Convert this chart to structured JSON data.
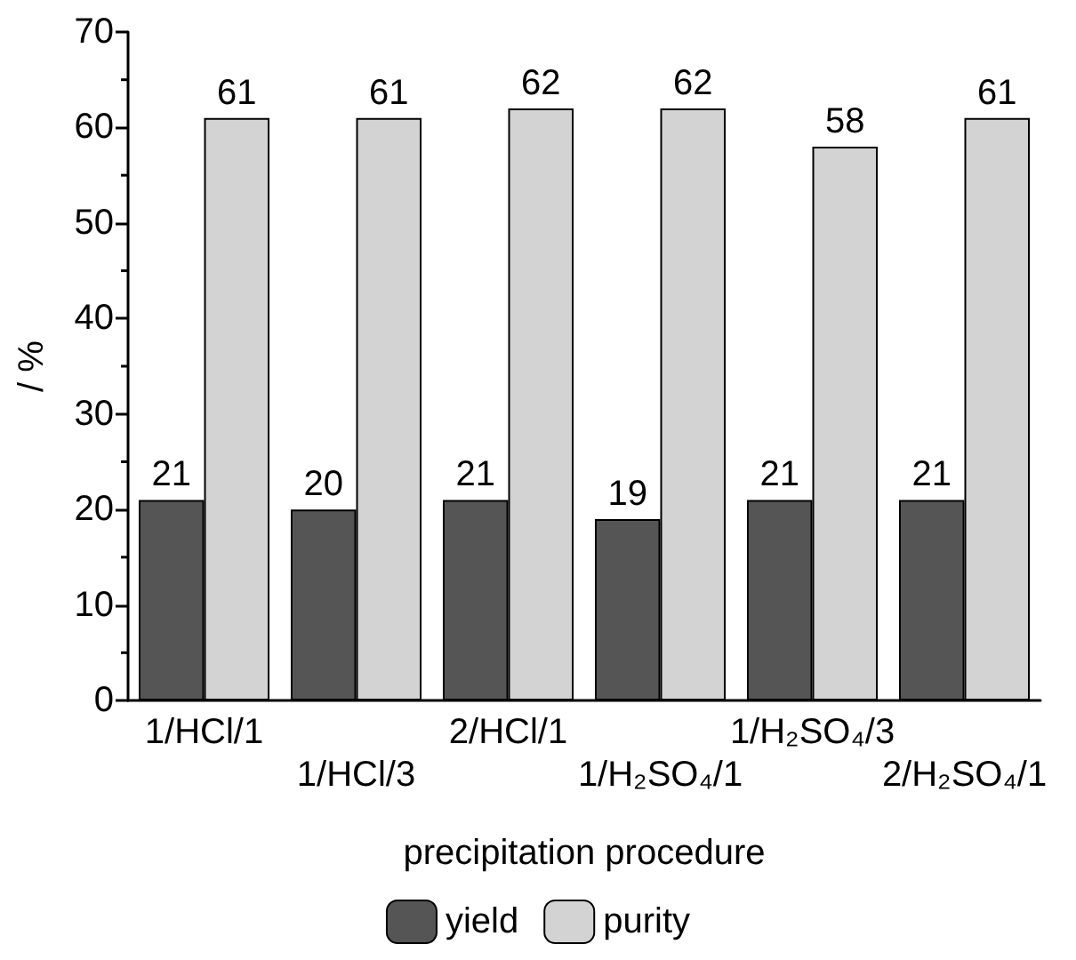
{
  "chart_data": {
    "type": "bar",
    "categories": [
      "1/HCl/1",
      "1/HCl/3",
      "2/HCl/1",
      "1/H₂SO₄/1",
      "1/H₂SO₄/3",
      "2/H₂SO₄/1"
    ],
    "series": [
      {
        "name": "yield",
        "color": "#555555",
        "values": [
          21,
          20,
          21,
          19,
          21,
          21
        ]
      },
      {
        "name": "purity",
        "color": "#d3d3d3",
        "values": [
          61,
          61,
          62,
          62,
          58,
          61
        ]
      }
    ],
    "xlabel": "precipitation procedure",
    "ylabel": "/ %",
    "ylim": [
      0,
      70
    ],
    "yticks": [
      0,
      10,
      20,
      30,
      40,
      50,
      60,
      70
    ],
    "data_labels": true,
    "grid": false,
    "legend": "bottom"
  }
}
